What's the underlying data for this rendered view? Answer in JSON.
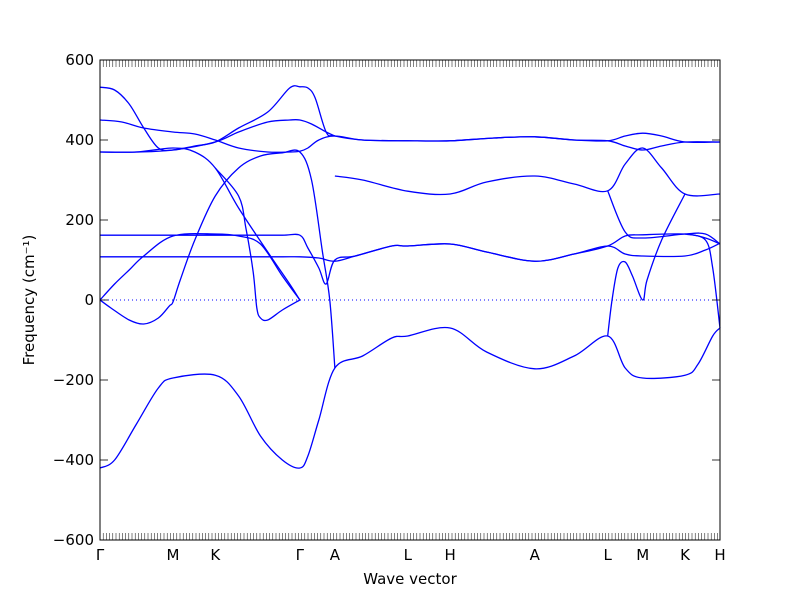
{
  "chart_data": {
    "type": "line",
    "title": "",
    "xlabel": "Wave vector",
    "ylabel": "Frequency (cm⁻¹)",
    "ylim": [
      -600,
      600
    ],
    "yticks": [
      -600,
      -400,
      -200,
      0,
      200,
      400,
      600
    ],
    "grid": false,
    "line_color": "#0000ff",
    "x_points": [
      {
        "label": "Γ",
        "x": 0
      },
      {
        "label": "M",
        "x": 1.0
      },
      {
        "label": "K",
        "x": 1.58
      },
      {
        "label": "Γ",
        "x": 2.74
      },
      {
        "label": "A",
        "x": 3.22
      },
      {
        "label": "L",
        "x": 4.22
      },
      {
        "label": "H",
        "x": 4.8
      },
      {
        "label": "A",
        "x": 5.96
      },
      {
        "label": "L",
        "x": 6.96
      },
      {
        "label": "M",
        "x": 7.44
      },
      {
        "label": "K",
        "x": 8.02
      },
      {
        "label": "H",
        "x": 8.5
      }
    ],
    "series": [
      {
        "points": [
          [
            0,
            532
          ],
          [
            0.2,
            525
          ],
          [
            0.4,
            490
          ],
          [
            0.6,
            430
          ],
          [
            0.8,
            380
          ],
          [
            1.0,
            375
          ],
          [
            1.3,
            385
          ],
          [
            1.58,
            395
          ],
          [
            1.9,
            430
          ],
          [
            2.3,
            470
          ],
          [
            2.6,
            530
          ],
          [
            2.74,
            533
          ],
          [
            2.85,
            530
          ],
          [
            2.95,
            505
          ],
          [
            3.1,
            420
          ],
          [
            3.22,
            410
          ],
          [
            3.6,
            400
          ],
          [
            4.22,
            398
          ],
          [
            4.8,
            398
          ],
          [
            5.4,
            405
          ],
          [
            5.96,
            408
          ],
          [
            6.5,
            400
          ],
          [
            6.96,
            398
          ],
          [
            7.2,
            410
          ],
          [
            7.44,
            417
          ],
          [
            7.7,
            410
          ],
          [
            8.02,
            395
          ],
          [
            8.5,
            395
          ]
        ]
      },
      {
        "points": [
          [
            0,
            450
          ],
          [
            0.3,
            445
          ],
          [
            0.6,
            430
          ],
          [
            1.0,
            420
          ],
          [
            1.3,
            415
          ],
          [
            1.58,
            400
          ],
          [
            1.9,
            380
          ],
          [
            2.3,
            370
          ],
          [
            2.6,
            370
          ],
          [
            2.74,
            372
          ],
          [
            2.85,
            380
          ],
          [
            3.0,
            400
          ],
          [
            3.22,
            410
          ],
          [
            3.6,
            400
          ],
          [
            4.22,
            398
          ],
          [
            4.8,
            398
          ],
          [
            5.4,
            405
          ],
          [
            5.96,
            408
          ],
          [
            6.5,
            400
          ],
          [
            6.96,
            398
          ],
          [
            7.2,
            385
          ],
          [
            7.44,
            375
          ],
          [
            7.7,
            385
          ],
          [
            8.02,
            395
          ],
          [
            8.5,
            395
          ]
        ]
      },
      {
        "points": [
          [
            0,
            370
          ],
          [
            0.5,
            370
          ],
          [
            1.0,
            375
          ],
          [
            1.58,
            395
          ],
          [
            1.9,
            420
          ],
          [
            2.3,
            445
          ],
          [
            2.6,
            450
          ],
          [
            2.74,
            450
          ],
          [
            2.9,
            440
          ],
          [
            3.1,
            420
          ],
          [
            3.22,
            410
          ]
        ]
      },
      {
        "points": [
          [
            0,
            370
          ],
          [
            0.5,
            370
          ],
          [
            1.0,
            380
          ],
          [
            1.3,
            370
          ],
          [
            1.58,
            330
          ],
          [
            1.9,
            230
          ],
          [
            2.3,
            120
          ],
          [
            2.6,
            40
          ],
          [
            2.74,
            0
          ]
        ]
      },
      {
        "points": [
          [
            0,
            0
          ],
          [
            0.2,
            40
          ],
          [
            0.4,
            75
          ],
          [
            0.6,
            110
          ],
          [
            1.0,
            160
          ],
          [
            1.58,
            165
          ],
          [
            1.9,
            160
          ],
          [
            2.2,
            140
          ],
          [
            2.5,
            60
          ],
          [
            2.74,
            0
          ]
        ]
      },
      {
        "points": [
          [
            0,
            0
          ],
          [
            0.15,
            -20
          ],
          [
            0.4,
            -50
          ],
          [
            0.6,
            -60
          ],
          [
            0.8,
            -45
          ],
          [
            0.95,
            -15
          ],
          [
            1.0,
            -5
          ],
          [
            1.1,
            50
          ],
          [
            1.3,
            150
          ],
          [
            1.58,
            260
          ],
          [
            1.9,
            330
          ],
          [
            2.2,
            360
          ],
          [
            2.5,
            368
          ],
          [
            2.74,
            370
          ],
          [
            2.9,
            300
          ],
          [
            3.05,
            120
          ],
          [
            3.15,
            0
          ],
          [
            3.22,
            -170
          ]
        ]
      },
      {
        "points": [
          [
            0,
            162
          ],
          [
            0.5,
            162
          ],
          [
            1.0,
            162
          ],
          [
            1.58,
            162
          ],
          [
            2.0,
            162
          ],
          [
            2.5,
            162
          ],
          [
            2.74,
            162
          ],
          [
            2.85,
            130
          ],
          [
            3.0,
            80
          ],
          [
            3.1,
            40
          ],
          [
            3.22,
            100
          ],
          [
            3.5,
            110
          ],
          [
            4.0,
            135
          ],
          [
            4.22,
            135
          ],
          [
            4.8,
            140
          ],
          [
            5.3,
            120
          ],
          [
            5.96,
            97
          ],
          [
            6.5,
            115
          ],
          [
            6.96,
            135
          ],
          [
            7.2,
            160
          ],
          [
            7.44,
            163
          ],
          [
            8.02,
            165
          ],
          [
            8.3,
            155
          ],
          [
            8.5,
            140
          ]
        ]
      },
      {
        "points": [
          [
            0,
            108
          ],
          [
            0.5,
            108
          ],
          [
            1.0,
            108
          ],
          [
            1.58,
            108
          ],
          [
            2.0,
            108
          ],
          [
            2.5,
            108
          ],
          [
            2.74,
            108
          ],
          [
            3.0,
            105
          ],
          [
            3.22,
            97
          ],
          [
            3.5,
            110
          ],
          [
            4.0,
            135
          ],
          [
            4.22,
            135
          ],
          [
            4.8,
            140
          ],
          [
            5.3,
            120
          ],
          [
            5.96,
            97
          ],
          [
            6.5,
            115
          ],
          [
            6.96,
            135
          ],
          [
            7.2,
            115
          ],
          [
            7.44,
            110
          ],
          [
            8.02,
            110
          ],
          [
            8.3,
            125
          ],
          [
            8.5,
            142
          ]
        ]
      },
      {
        "points": [
          [
            0,
            -420
          ],
          [
            0.2,
            -400
          ],
          [
            0.5,
            -310
          ],
          [
            0.8,
            -220
          ],
          [
            1.0,
            -195
          ],
          [
            1.58,
            -188
          ],
          [
            1.9,
            -240
          ],
          [
            2.2,
            -340
          ],
          [
            2.5,
            -400
          ],
          [
            2.74,
            -420
          ],
          [
            2.85,
            -390
          ],
          [
            3.0,
            -300
          ],
          [
            3.22,
            -170
          ],
          [
            3.6,
            -140
          ],
          [
            4.0,
            -95
          ],
          [
            4.22,
            -90
          ],
          [
            4.8,
            -70
          ],
          [
            5.3,
            -130
          ],
          [
            5.96,
            -172
          ],
          [
            6.5,
            -140
          ],
          [
            6.96,
            -90
          ],
          [
            7.2,
            -170
          ],
          [
            7.44,
            -195
          ],
          [
            8.02,
            -188
          ],
          [
            8.2,
            -160
          ],
          [
            8.4,
            -90
          ],
          [
            8.5,
            -70
          ]
        ]
      },
      {
        "points": [
          [
            6.96,
            273
          ],
          [
            7.2,
            170
          ],
          [
            7.44,
            155
          ],
          [
            8.02,
            165
          ],
          [
            8.3,
            165
          ],
          [
            8.5,
            140
          ]
        ]
      },
      {
        "points": [
          [
            3.22,
            310
          ],
          [
            3.6,
            300
          ],
          [
            4.22,
            272
          ],
          [
            4.8,
            265
          ],
          [
            5.3,
            295
          ],
          [
            5.96,
            310
          ],
          [
            6.5,
            290
          ],
          [
            6.96,
            273
          ],
          [
            7.2,
            340
          ],
          [
            7.44,
            380
          ],
          [
            7.7,
            330
          ],
          [
            8.02,
            265
          ],
          [
            8.5,
            265
          ]
        ]
      },
      {
        "points": [
          [
            6.96,
            -90
          ],
          [
            7.02,
            0
          ],
          [
            7.1,
            80
          ],
          [
            7.2,
            95
          ],
          [
            7.3,
            60
          ],
          [
            7.44,
            0
          ],
          [
            7.5,
            50
          ],
          [
            7.7,
            150
          ],
          [
            8.02,
            265
          ]
        ]
      },
      {
        "points": [
          [
            1.58,
            330
          ],
          [
            1.9,
            260
          ],
          [
            2.0,
            180
          ],
          [
            2.1,
            70
          ],
          [
            2.15,
            -20
          ],
          [
            2.2,
            -45
          ],
          [
            2.3,
            -50
          ],
          [
            2.5,
            -25
          ],
          [
            2.74,
            0
          ]
        ]
      },
      {
        "points": [
          [
            8.02,
            165
          ],
          [
            8.3,
            150
          ],
          [
            8.4,
            80
          ],
          [
            8.5,
            -70
          ]
        ]
      }
    ]
  }
}
